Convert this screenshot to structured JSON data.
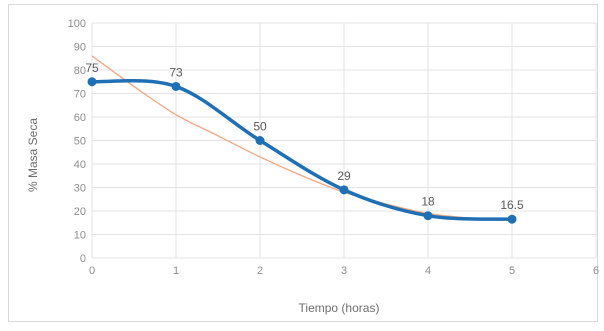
{
  "chart_data": {
    "type": "line",
    "title": "",
    "xlabel": "Tiempo (horas)",
    "ylabel": "% Masa Seca",
    "xlim": [
      0,
      6
    ],
    "ylim": [
      0,
      100
    ],
    "x_ticks": [
      0,
      1,
      2,
      3,
      4,
      5,
      6
    ],
    "y_ticks": [
      0,
      10,
      20,
      30,
      40,
      50,
      60,
      70,
      80,
      90,
      100
    ],
    "grid": true,
    "legend": "none",
    "series": [
      {
        "x": [
          0,
          1,
          2,
          3,
          4,
          5
        ],
        "values": [
          75,
          73,
          50,
          29,
          18,
          16.5
        ],
        "labels": [
          "75",
          "73",
          "50",
          "29",
          "18",
          "16.5"
        ],
        "color": "#1f6fb5",
        "markers": true,
        "smooth": true
      }
    ],
    "trendline": {
      "type": "polynomial",
      "color": "#f4a582",
      "x": [
        0,
        0.5,
        1,
        1.5,
        2,
        2.5,
        3,
        3.5,
        4,
        4.5,
        5
      ],
      "values": [
        86,
        73,
        61,
        52,
        43,
        35,
        28,
        23,
        19,
        17,
        16
      ]
    }
  }
}
